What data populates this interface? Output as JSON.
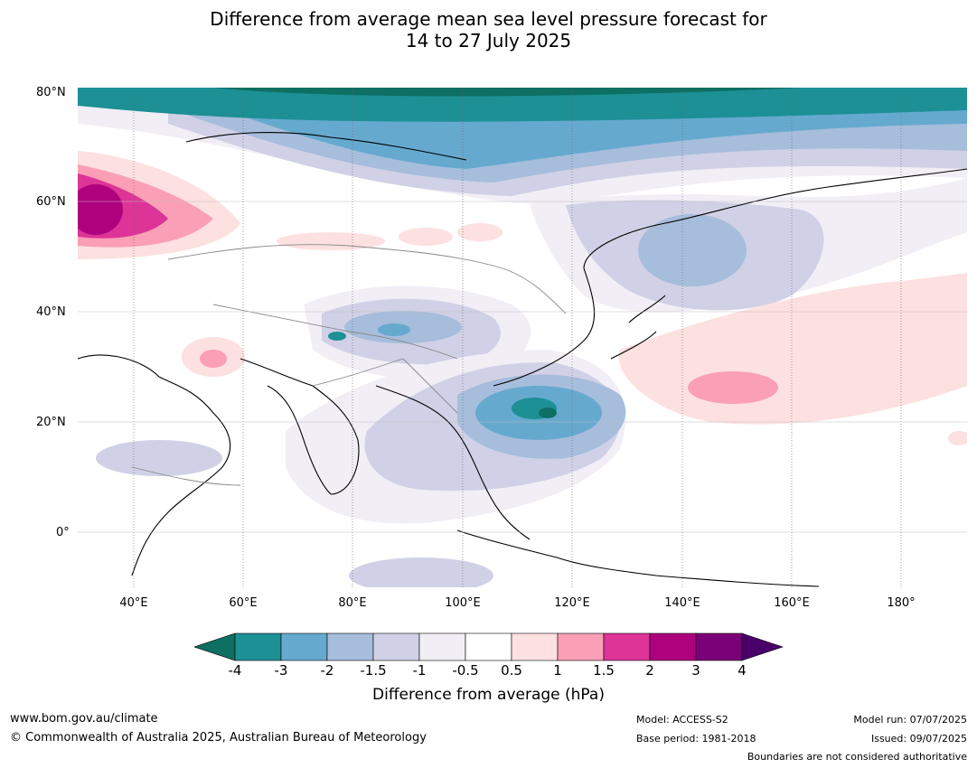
{
  "title_line1": "Difference from average mean sea level pressure forecast for",
  "title_line2": "14 to 27 July 2025",
  "lat_labels": [
    "80°N",
    "60°N",
    "40°N",
    "20°N",
    "0°"
  ],
  "lon_labels": [
    "40°E",
    "60°E",
    "80°E",
    "100°E",
    "120°E",
    "140°E",
    "160°E",
    "180°"
  ],
  "colorbar": {
    "ticks": [
      "-4",
      "-3",
      "-2",
      "-1.5",
      "-1",
      "-0.5",
      "0.5",
      "1",
      "1.5",
      "2",
      "3",
      "4"
    ],
    "colors": [
      "#0e6f63",
      "#1c9095",
      "#66a9cf",
      "#a6bddb",
      "#d0d1e6",
      "#f1eef6",
      "#ffffff",
      "#fde0e0",
      "#fa9fb5",
      "#dd3497",
      "#ae017e",
      "#7a0177",
      "#49006a"
    ],
    "label": "Difference from average (hPa)"
  },
  "footer": {
    "url": "www.bom.gov.au/climate",
    "copyright": "© Commonwealth of Australia 2025, Australian Bureau of Meteorology",
    "model": "Model: ACCESS-S2",
    "base_period": "Base period: 1981-2018",
    "model_run": "Model run: 07/07/2025",
    "issued": "Issued: 09/07/2025",
    "disclaimer": "Boundaries are not considered authoritative"
  }
}
